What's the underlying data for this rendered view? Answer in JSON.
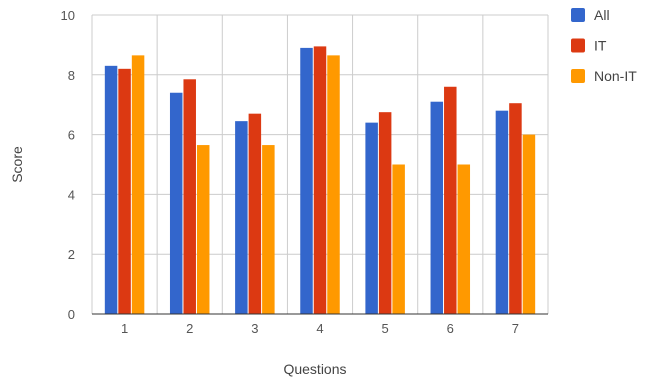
{
  "chart_data": {
    "type": "bar",
    "title": "",
    "xlabel": "Questions",
    "ylabel": "Score",
    "ylim": [
      0,
      10
    ],
    "yticks": [
      0,
      2,
      4,
      6,
      8,
      10
    ],
    "grid": true,
    "legend_position": "right",
    "categories": [
      "1",
      "2",
      "3",
      "4",
      "5",
      "6",
      "7"
    ],
    "series": [
      {
        "name": "All",
        "color": "#3366cc",
        "values": [
          8.3,
          7.4,
          6.45,
          8.9,
          6.4,
          7.1,
          6.8
        ]
      },
      {
        "name": "IT",
        "color": "#dc3912",
        "values": [
          8.2,
          7.85,
          6.7,
          8.95,
          6.75,
          7.6,
          7.05
        ]
      },
      {
        "name": "Non-IT",
        "color": "#ff9900",
        "values": [
          8.65,
          5.65,
          5.65,
          8.65,
          5.0,
          5.0,
          6.0
        ]
      }
    ]
  }
}
